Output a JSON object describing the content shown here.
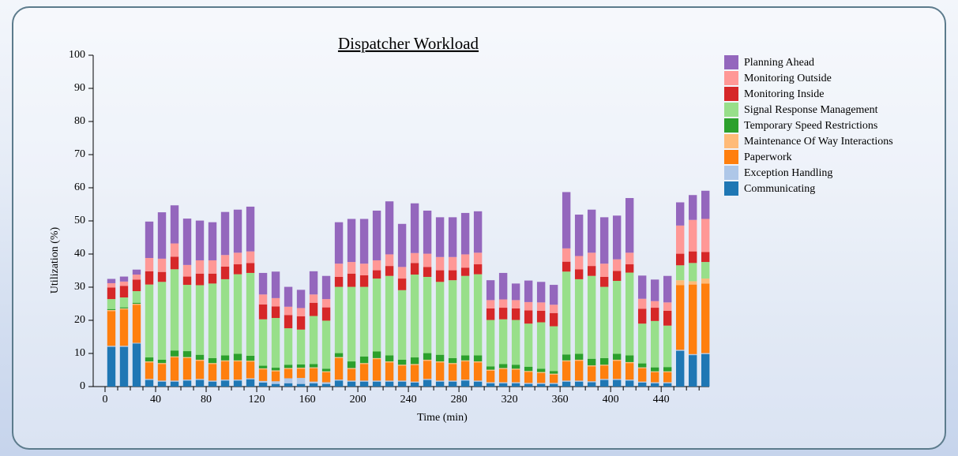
{
  "chart_data": {
    "type": "stacked_bar",
    "title": "Dispatcher Workload",
    "xlabel": "Time (min)",
    "ylabel": "Utilization (%)",
    "x": [
      5,
      15,
      25,
      35,
      45,
      55,
      65,
      75,
      85,
      95,
      105,
      115,
      125,
      135,
      145,
      155,
      165,
      175,
      185,
      195,
      205,
      215,
      225,
      235,
      245,
      255,
      265,
      275,
      285,
      295,
      305,
      315,
      325,
      335,
      345,
      355,
      365,
      375,
      385,
      395,
      405,
      415,
      425,
      435,
      445,
      455,
      465,
      475
    ],
    "xlim": [
      0,
      478
    ],
    "xticks": [
      0,
      40,
      80,
      120,
      160,
      200,
      240,
      280,
      320,
      360,
      400,
      440
    ],
    "ylim": [
      0,
      100
    ],
    "yticks": [
      0,
      10,
      20,
      30,
      40,
      50,
      60,
      70,
      80,
      90,
      100
    ],
    "series": [
      {
        "name": "Communicating",
        "color": "#1f77b4",
        "values": [
          12,
          12,
          13,
          2,
          1.5,
          1.5,
          1.8,
          2,
          1.5,
          1.8,
          1.8,
          2.2,
          1.2,
          0.8,
          1,
          0.8,
          1,
          0.8,
          1.8,
          1.5,
          1.5,
          1.5,
          1.5,
          1.5,
          1.2,
          2,
          1.5,
          1.5,
          1.8,
          1.5,
          1,
          1,
          1,
          0.8,
          0.8,
          0.8,
          1.5,
          1.5,
          1.3,
          2,
          2,
          1.8,
          1.2,
          1,
          1,
          10.8,
          9.5,
          9.8
        ]
      },
      {
        "name": "Exception Handling",
        "color": "#aec7e8",
        "values": [
          0.3,
          0.3,
          0.2,
          0.3,
          0.3,
          0.3,
          0.3,
          0.3,
          0.3,
          0.3,
          0.3,
          0.3,
          0.5,
          0.8,
          1.5,
          1.8,
          0.5,
          0.5,
          0.3,
          0.3,
          0.3,
          0.3,
          0.3,
          0.3,
          0.3,
          0.3,
          0.3,
          0.3,
          0.3,
          0.3,
          0.3,
          0.3,
          0.3,
          0.3,
          0.3,
          0.3,
          0.3,
          0.3,
          0.3,
          0.3,
          0.3,
          0.3,
          0.3,
          0.3,
          0.3,
          0.3,
          0.3,
          0.3
        ]
      },
      {
        "name": "Paperwork",
        "color": "#ff7f0e",
        "values": [
          10.5,
          11,
          11.5,
          5,
          5,
          7,
          6.5,
          5.5,
          5,
          5.5,
          5.5,
          5,
          3.5,
          3,
          2.8,
          2.8,
          4,
          3,
          6.5,
          3.5,
          5,
          6.5,
          5.5,
          4.5,
          5,
          5.5,
          5.5,
          5,
          5.5,
          5.5,
          3.5,
          4,
          3.8,
          3.3,
          3,
          2.5,
          5.8,
          6,
          4.5,
          4,
          5.5,
          5,
          4,
          3,
          3,
          19.5,
          21,
          21
        ]
      },
      {
        "name": "Maintenance Of Way Interactions",
        "color": "#ffbb78",
        "values": [
          0.3,
          0.3,
          0.3,
          0.3,
          0.3,
          0.3,
          0.3,
          0.3,
          0.3,
          0.3,
          0.3,
          0.3,
          0.3,
          0.3,
          0.3,
          0.3,
          0.3,
          0.3,
          0.3,
          0.3,
          0.3,
          0.3,
          0.3,
          0.3,
          0.3,
          0.3,
          0.3,
          0.3,
          0.3,
          0.3,
          0.3,
          0.3,
          0.3,
          0.3,
          0.3,
          0.3,
          0.3,
          0.3,
          0.3,
          0.3,
          0.3,
          0.3,
          0.3,
          0.3,
          0.3,
          1.5,
          1,
          1.5
        ]
      },
      {
        "name": "Temporary Speed Restrictions",
        "color": "#2ca02c",
        "values": [
          0.3,
          0.3,
          0.3,
          1.2,
          1,
          1.8,
          1.8,
          1.5,
          1.5,
          1.5,
          2,
          1.5,
          0.8,
          0.8,
          1,
          1,
          1,
          0.8,
          1.2,
          2,
          2,
          2,
          1.8,
          1.5,
          2,
          2,
          2,
          1.5,
          1.5,
          1.8,
          1,
          1.2,
          1.2,
          1.3,
          1,
          0.8,
          1.8,
          1.8,
          2,
          2,
          1.8,
          2,
          1.2,
          1.2,
          1.3,
          0,
          0,
          0
        ]
      },
      {
        "name": "Signal Response Management",
        "color": "#98df8a",
        "values": [
          3,
          3,
          3.5,
          22,
          23.5,
          24.5,
          20,
          21,
          22.5,
          23,
          24,
          25,
          14,
          15,
          11,
          10.5,
          14.5,
          14.5,
          20,
          22.5,
          21,
          22,
          24,
          21,
          25,
          23,
          22,
          23.5,
          24,
          24.5,
          14,
          13.5,
          13.5,
          13,
          14,
          13.5,
          25,
          22.5,
          25,
          21.5,
          22,
          25,
          12,
          14,
          12.5,
          4.5,
          5.5,
          5
        ]
      },
      {
        "name": "Monitoring Inside",
        "color": "#d62728",
        "values": [
          3.5,
          3.5,
          3.5,
          4,
          3,
          3.8,
          2.5,
          3.5,
          3,
          3.8,
          3,
          3,
          4.5,
          3.5,
          4,
          4,
          4,
          4,
          3,
          4,
          3.5,
          2.5,
          3,
          3.5,
          3.5,
          3,
          3.5,
          3,
          2.5,
          3,
          3.5,
          3.5,
          3.5,
          4,
          3.5,
          4,
          3,
          3,
          3,
          3,
          3,
          2.5,
          4.5,
          4,
          4.5,
          3.5,
          3.5,
          3
        ]
      },
      {
        "name": "Monitoring Outside",
        "color": "#ff9896",
        "values": [
          1.3,
          1.3,
          1.5,
          4,
          4,
          4,
          3.5,
          4,
          4,
          3.5,
          3.5,
          3.5,
          3,
          2.5,
          2.5,
          2.5,
          2.5,
          2.5,
          4,
          3.5,
          3.5,
          3,
          3.5,
          3.5,
          3,
          4,
          4,
          4,
          4,
          3.5,
          2.5,
          2.5,
          2.5,
          2.5,
          2.5,
          2.5,
          4,
          4,
          4,
          4,
          3.5,
          3.5,
          3,
          2,
          2.5,
          8.5,
          9.5,
          10
        ]
      },
      {
        "name": "Planning Ahead",
        "color": "#9467bd",
        "values": [
          1.3,
          1.5,
          1.5,
          11,
          14,
          11.5,
          14,
          12,
          11.5,
          13,
          13,
          13.5,
          6.5,
          8,
          6,
          5.5,
          7,
          7,
          12.5,
          13,
          13.5,
          15,
          16,
          13,
          15,
          13,
          12,
          12,
          12.5,
          12.5,
          6,
          8,
          5,
          6.5,
          6.2,
          6,
          17,
          12.5,
          13,
          14,
          13.2,
          16.5,
          7,
          6.5,
          8,
          7,
          7.5,
          8.5
        ]
      }
    ]
  }
}
